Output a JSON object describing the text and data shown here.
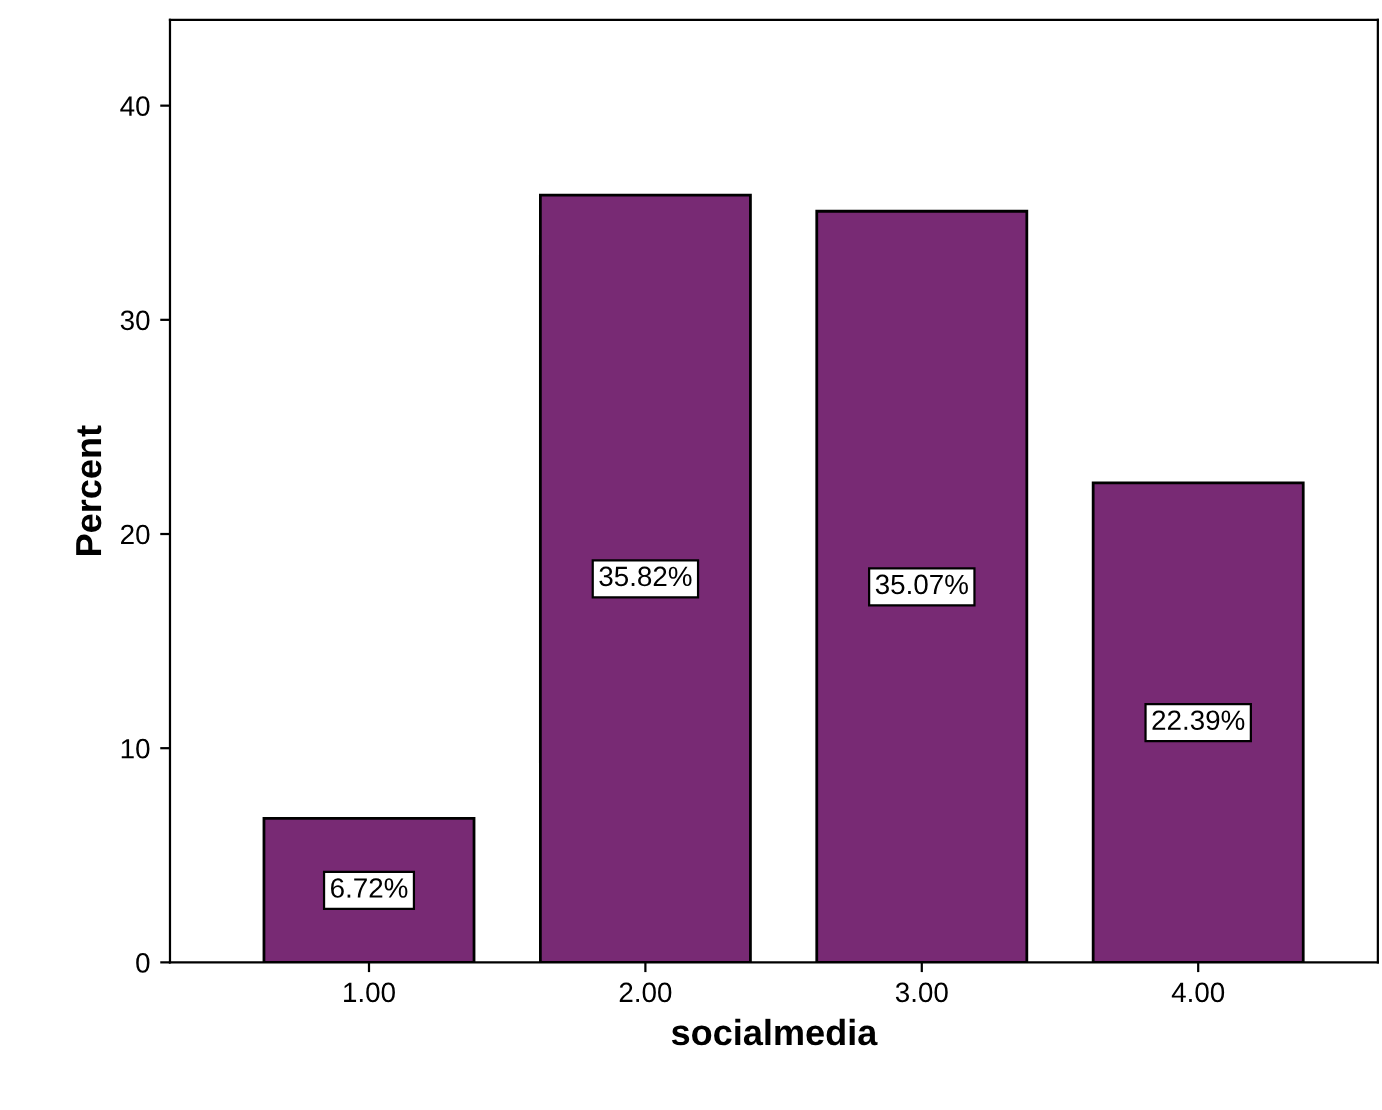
{
  "chart_data": {
    "type": "bar",
    "xlabel": "socialmedia",
    "ylabel": "Percent",
    "categories": [
      "1.00",
      "2.00",
      "3.00",
      "4.00"
    ],
    "values": [
      6.72,
      35.82,
      35.07,
      22.39
    ],
    "value_labels": [
      "6.72%",
      "35.82%",
      "35.07%",
      "22.39%"
    ],
    "color": "#782a74",
    "ylim": [
      0,
      44
    ],
    "yticks": [
      0,
      10,
      20,
      30,
      40
    ],
    "grid": false,
    "legend": false
  }
}
